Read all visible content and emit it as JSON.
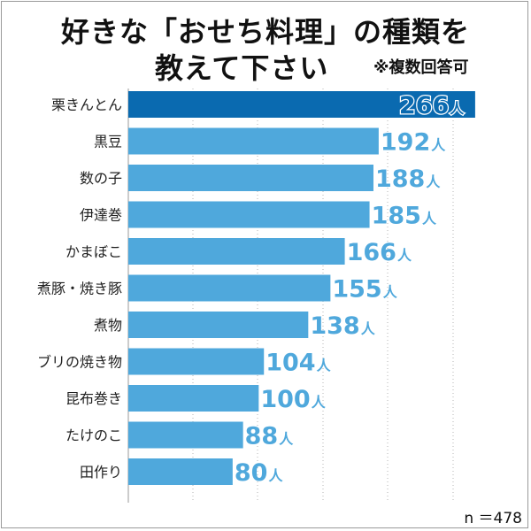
{
  "title": {
    "line1": "好きな「おせち料理」の種類を",
    "line2": "教えて下さい",
    "note": "※複数回答可"
  },
  "footer": {
    "sample_size": "n ＝478"
  },
  "colors": {
    "top_bar": "#0a6ab0",
    "bar": "#4fa8dc",
    "value_label": "#4fa8dc",
    "top_value_label": "#0a6ab0"
  },
  "chart_data": {
    "type": "bar",
    "orientation": "horizontal",
    "categories": [
      "栗きんとん",
      "黒豆",
      "数の子",
      "伊達巻",
      "かまぼこ",
      "煮豚・焼き豚",
      "煮物",
      "ブリの焼き物",
      "昆布巻き",
      "たけのこ",
      "田作り"
    ],
    "values": [
      266,
      192,
      188,
      185,
      166,
      155,
      138,
      104,
      100,
      88,
      80
    ],
    "unit": "人",
    "xlim": [
      0,
      300
    ],
    "grid": "vertical-dotted"
  }
}
